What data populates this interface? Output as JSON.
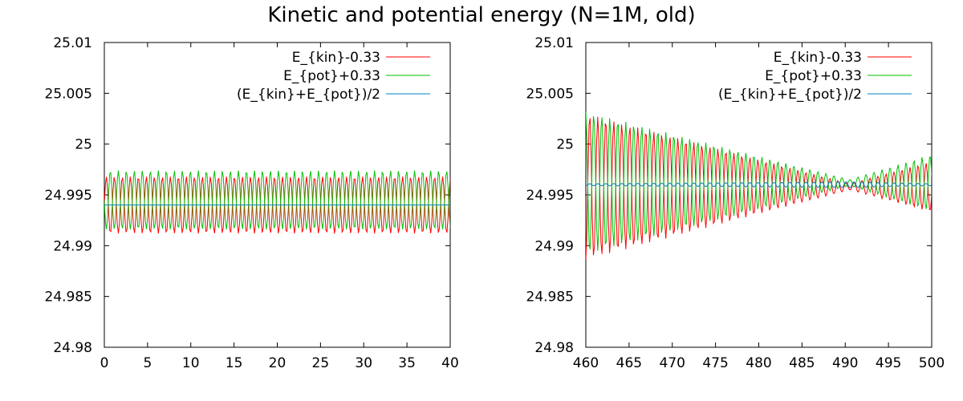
{
  "figure": {
    "title": "Kinetic and potential energy (N=1M, old)"
  },
  "chart_data": [
    {
      "type": "line",
      "panel": "left",
      "xlim": [
        0,
        40
      ],
      "ylim": [
        24.98,
        25.01
      ],
      "x_ticks": [
        0,
        5,
        10,
        15,
        20,
        25,
        30,
        35,
        40
      ],
      "y_ticks": [
        24.98,
        24.985,
        24.99,
        24.995,
        25,
        25.005,
        25.01
      ],
      "x_tick_labels": [
        "0",
        "5",
        "10",
        "15",
        "20",
        "25",
        "30",
        "35",
        "40"
      ],
      "y_tick_labels": [
        "24.98",
        "24.985",
        "24.99",
        "24.995",
        "25",
        "25.005",
        "25.01"
      ],
      "grid": false,
      "legend_position": "top-right",
      "oscillation_period": 0.926,
      "series": [
        {
          "name": "E_{kin}-0.33",
          "color": "#ff0000",
          "mean": 24.994,
          "amplitude_start": 0.0028,
          "amplitude_end": 0.0028,
          "phase": 0
        },
        {
          "name": "E_{pot}+0.33",
          "color": "#00c000",
          "mean": 24.9945,
          "amplitude_start": 0.0029,
          "amplitude_end": 0.0029,
          "phase": 3.1416
        },
        {
          "name": "(E_{kin}+E_{pot})/2",
          "color": "#0080c0",
          "mean": 24.994,
          "amplitude_start": 0,
          "amplitude_end": 0,
          "phase": 0
        }
      ]
    },
    {
      "type": "line",
      "panel": "right",
      "xlim": [
        460,
        500
      ],
      "ylim": [
        24.98,
        25.01
      ],
      "x_ticks": [
        460,
        465,
        470,
        475,
        480,
        485,
        490,
        495,
        500
      ],
      "y_ticks": [
        24.98,
        24.985,
        24.99,
        24.995,
        25,
        25.005,
        25.01
      ],
      "x_tick_labels": [
        "460",
        "465",
        "470",
        "475",
        "480",
        "485",
        "490",
        "495",
        "500"
      ],
      "y_tick_labels": [
        "24.98",
        "24.985",
        "24.99",
        "24.995",
        "25",
        "25.005",
        "25.01"
      ],
      "grid": false,
      "legend_position": "top-right",
      "oscillation_period": 0.926,
      "beat_node_x": 490.5,
      "series": [
        {
          "name": "E_{kin}-0.33",
          "color": "#ff0000",
          "mean": 24.9958,
          "amplitude_start": 0.0072,
          "amplitude_end": 0.0025,
          "phase": 0
        },
        {
          "name": "E_{pot}+0.33",
          "color": "#00c000",
          "mean": 24.9962,
          "amplitude_start": 0.007,
          "amplitude_end": 0.0028,
          "phase": 3.1416
        },
        {
          "name": "(E_{kin}+E_{pot})/2",
          "color": "#0080c0",
          "mean": 24.996,
          "amplitude_start": 0.0001,
          "amplitude_end": 0.0001,
          "phase": 0
        }
      ]
    }
  ]
}
